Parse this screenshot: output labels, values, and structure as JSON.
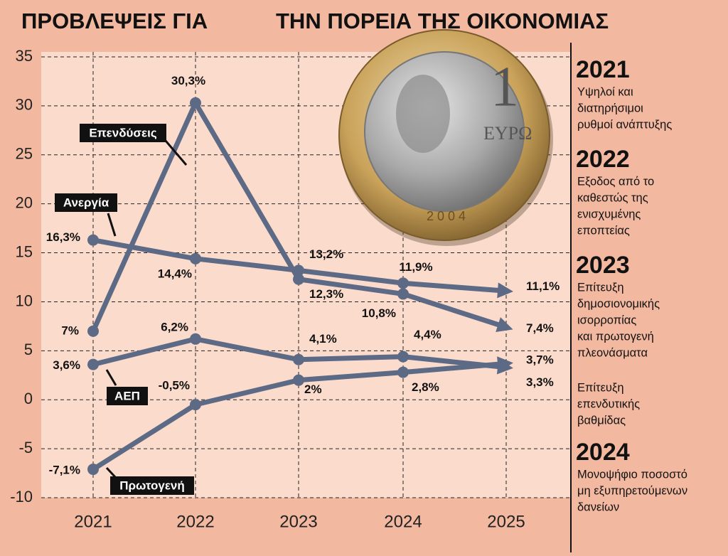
{
  "chart_data": {
    "type": "line",
    "title": [
      "ΠΡΟΒΛΕΨΕΙΣ ΓΙΑ",
      "ΤΗΝ ΠΟΡΕΙΑ ΤΗΣ ΟΙΚΟΝΟΜΙΑΣ"
    ],
    "categories": [
      "2021",
      "2022",
      "2023",
      "2024",
      "2025"
    ],
    "ylim": [
      -10,
      35
    ],
    "yticks": [
      -10,
      -5,
      0,
      5,
      10,
      15,
      20,
      25,
      30,
      35
    ],
    "grid": true,
    "series": [
      {
        "name": "Επενδύσεις",
        "color": "#5d6a86",
        "values": [
          7,
          30.3,
          12.3,
          10.8,
          7.4
        ],
        "value_labels": [
          "7%",
          "30,3%",
          "12,3%",
          "10,8%",
          "7,4%"
        ]
      },
      {
        "name": "Ανεργία",
        "color": "#5d6a86",
        "values": [
          16.3,
          14.4,
          13.2,
          11.9,
          11.1
        ],
        "value_labels": [
          "16,3%",
          "14,4%",
          "13,2%",
          "11,9%",
          "11,1%"
        ]
      },
      {
        "name": "ΑΕΠ",
        "color": "#5d6a86",
        "values": [
          3.6,
          6.2,
          4.1,
          4.4,
          3.3
        ],
        "value_labels": [
          "3,6%",
          "6,2%",
          "4,1%",
          "4,4%",
          "3,3%"
        ]
      },
      {
        "name": "Πρωτογενή",
        "color": "#5d6a86",
        "values": [
          -7.1,
          -0.5,
          2,
          2.8,
          3.7
        ],
        "value_labels": [
          "-7,1%",
          "-0,5%",
          "2%",
          "2,8%",
          "3,7%"
        ]
      }
    ]
  },
  "sidebar": {
    "items": [
      {
        "year": "2021",
        "lines": [
          "Υψηλοί και",
          "διατηρήσιμοι",
          "ρυθμοί ανάπτυξης"
        ]
      },
      {
        "year": "2022",
        "lines": [
          "Εξοδος από το",
          "καθεστώς της",
          "ενισχυμένης",
          "εποπτείας"
        ]
      },
      {
        "year": "2023",
        "lines": [
          "Επίτευξη",
          "δημοσιονομικής",
          "ισορροπίας",
          "και πρωτογενή",
          "πλεονάσματα"
        ]
      },
      {
        "lines": [
          "Επίτευξη",
          "επενδυτικής",
          "βαθμίδας"
        ]
      },
      {
        "year": "2024",
        "lines": [
          "Μονοψήφιο ποσοστό",
          "μη εξυπηρετούμενων",
          "δανείων"
        ]
      }
    ]
  }
}
